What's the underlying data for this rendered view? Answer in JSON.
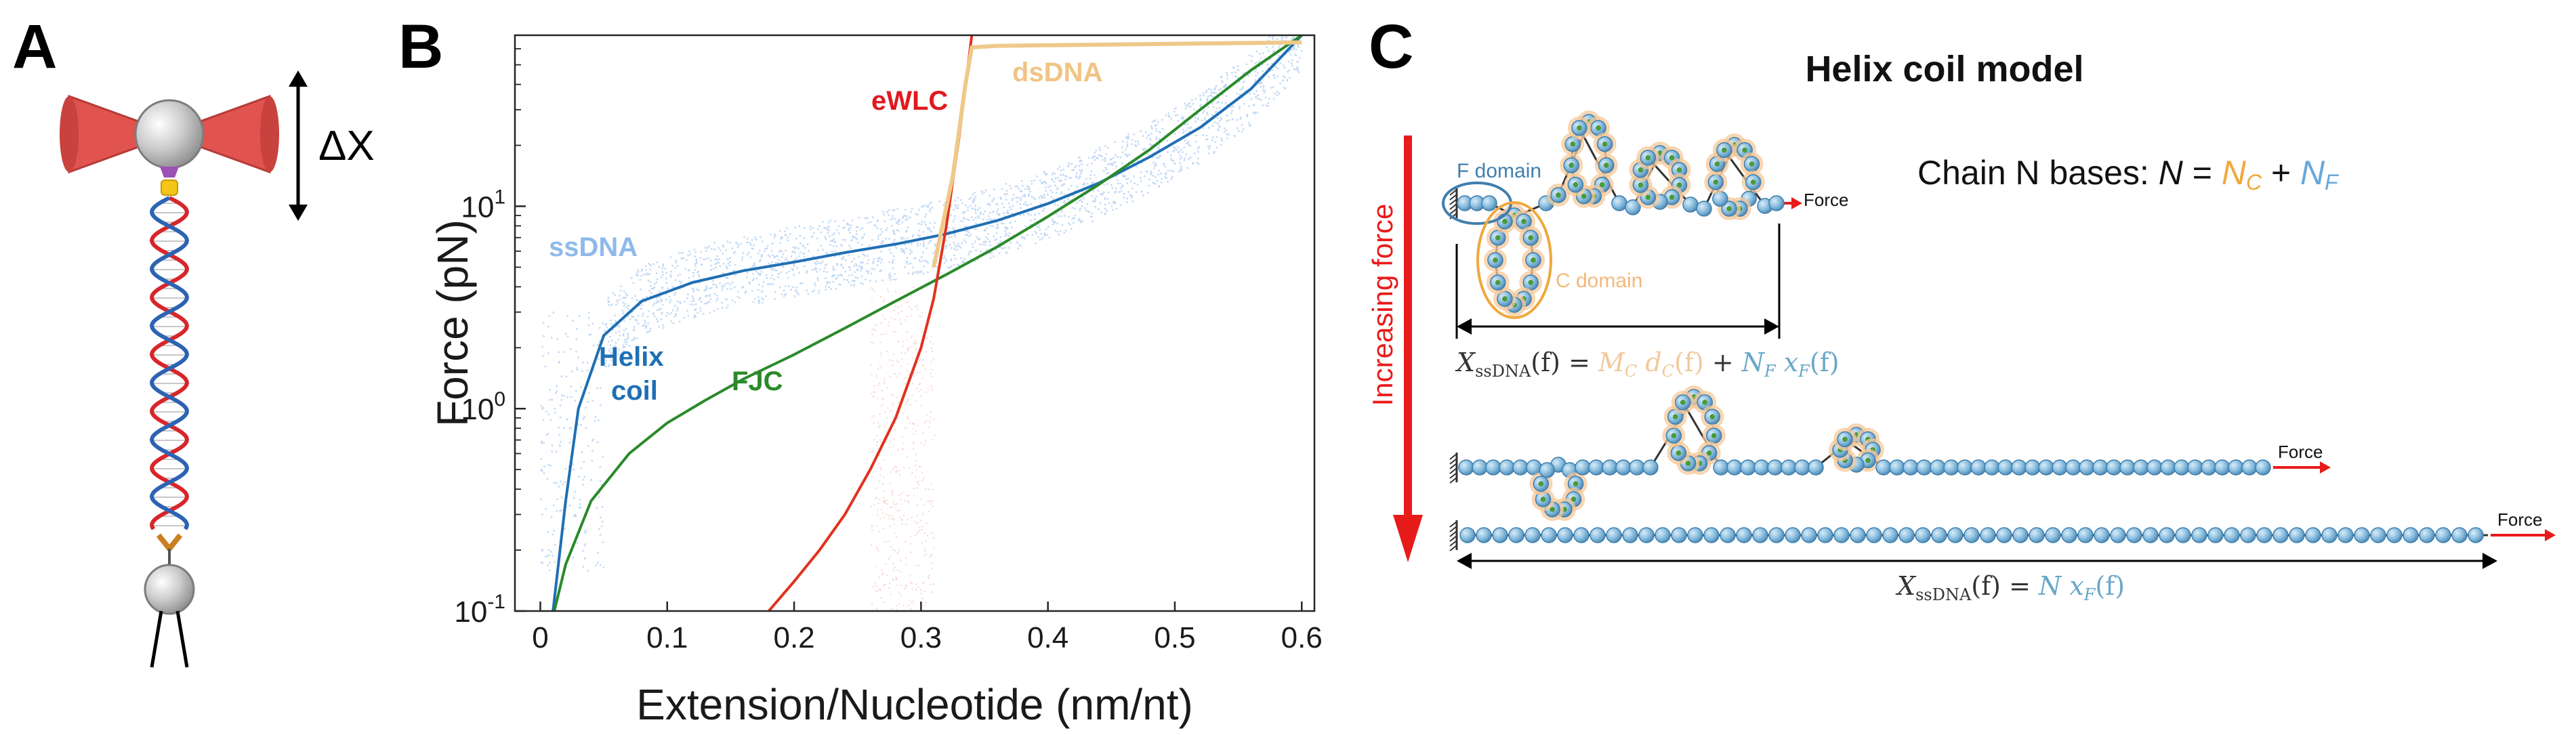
{
  "panels": {
    "a": "A",
    "b": "B",
    "c": "C"
  },
  "panel_a": {
    "delta_label": "ΔX"
  },
  "chart_data": {
    "type": "line",
    "title": "",
    "xlabel": "Extension/Nucleotide (nm/nt)",
    "ylabel": "Force (pN)",
    "xlim": [
      -0.02,
      0.61
    ],
    "ylim": [
      0.1,
      70
    ],
    "yscale": "log",
    "x_ticks": [
      0,
      0.1,
      0.2,
      0.3,
      0.4,
      0.5,
      0.6
    ],
    "x_tick_labels": [
      "0",
      "0.1",
      "0.2",
      "0.3",
      "0.4",
      "0.5",
      "0.6"
    ],
    "y_ticks": [
      0.1,
      1,
      10
    ],
    "y_tick_labels": [
      {
        "base": "10",
        "exp": "-1"
      },
      {
        "base": "10",
        "exp": "0"
      },
      {
        "base": "10",
        "exp": "1"
      }
    ],
    "series": [
      {
        "name": "Helix coil",
        "label_lines": [
          "Helix",
          "coil"
        ],
        "color": "#1f6fb5",
        "x": [
          0.01,
          0.02,
          0.03,
          0.05,
          0.08,
          0.12,
          0.16,
          0.2,
          0.24,
          0.28,
          0.32,
          0.36,
          0.4,
          0.44,
          0.48,
          0.52,
          0.56,
          0.6
        ],
        "y": [
          0.1,
          0.35,
          1.0,
          2.3,
          3.4,
          4.2,
          4.8,
          5.3,
          5.9,
          6.5,
          7.3,
          8.5,
          10.3,
          13,
          17.5,
          24.5,
          38,
          70
        ]
      },
      {
        "name": "FJC",
        "label_lines": [
          "FJC"
        ],
        "color": "#2a8a2a",
        "x": [
          0.011,
          0.02,
          0.04,
          0.07,
          0.1,
          0.13,
          0.16,
          0.2,
          0.24,
          0.28,
          0.32,
          0.36,
          0.4,
          0.44,
          0.48,
          0.52,
          0.56,
          0.6
        ],
        "y": [
          0.1,
          0.17,
          0.35,
          0.6,
          0.85,
          1.1,
          1.4,
          1.85,
          2.5,
          3.4,
          4.6,
          6.3,
          8.9,
          12.8,
          19,
          30,
          47,
          70
        ]
      },
      {
        "name": "eWLC",
        "label_lines": [
          "eWLC"
        ],
        "color": "#e0321e",
        "x": [
          0.18,
          0.2,
          0.22,
          0.24,
          0.26,
          0.28,
          0.3,
          0.31,
          0.32,
          0.33,
          0.34
        ],
        "y": [
          0.1,
          0.14,
          0.2,
          0.3,
          0.5,
          0.9,
          2.0,
          3.5,
          8,
          22,
          70
        ]
      },
      {
        "name": "dsDNA",
        "label_lines": [
          "dsDNA"
        ],
        "color": "#efc98a",
        "x": [
          0.31,
          0.325,
          0.335,
          0.34,
          0.36,
          0.4,
          0.45,
          0.5,
          0.55,
          0.6
        ],
        "y": [
          5,
          14,
          40,
          61,
          62,
          62.5,
          63,
          63.5,
          64,
          64.5
        ]
      }
    ],
    "annotations": [
      {
        "text": "ssDNA",
        "color": "#8fb9ea"
      },
      {
        "text": "eWLC",
        "color": "#e0191e"
      },
      {
        "text": "dsDNA",
        "color": "#f0c484"
      }
    ]
  },
  "panel_c": {
    "title": "Helix coil model",
    "chain_text": "Chain N bases: ",
    "chain_eq": {
      "N": "N",
      "equals": " = ",
      "NC": "N",
      "NC_sub": "C",
      "plus": " + ",
      "NF": "N",
      "NF_sub": "F"
    },
    "increasing_force": "Increasing force",
    "f_domain": "F domain",
    "c_domain": "C domain",
    "force_label": "Force",
    "eq1": {
      "X": "X",
      "X_sub": "ssDNA",
      "arg": "(f) = ",
      "MC": "M",
      "MC_sub": "C",
      "dC": " d",
      "dC_sub": "C",
      "dC_arg": "(f)",
      "plus": " + ",
      "NF": "N",
      "NF_sub": "F",
      "xF": " x",
      "xF_sub": "F",
      "xF_arg": "(f)"
    },
    "eq2": {
      "X": "X",
      "X_sub": "ssDNA",
      "arg": "(f) = ",
      "N": "N",
      "xF": " x",
      "xF_sub": "F",
      "xF_arg": "(f)"
    },
    "colors": {
      "orange": "#f0a83c",
      "blue": "#6aa7d8",
      "red": "#e81b1b",
      "bead": "#7fb8dc",
      "bead_edge": "#3f7fae",
      "halo": "#f6c89a"
    }
  }
}
